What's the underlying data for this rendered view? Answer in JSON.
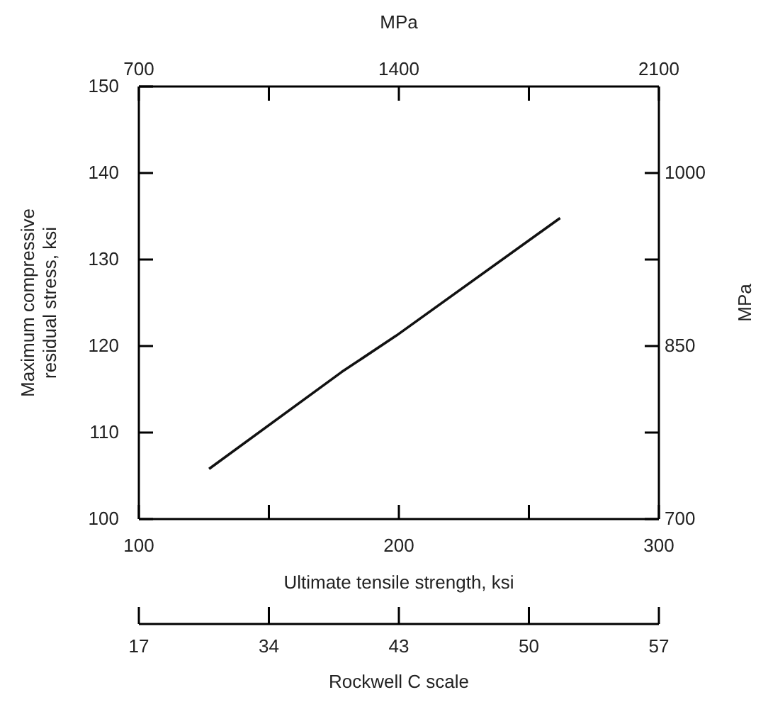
{
  "chart_data": {
    "type": "line",
    "xlabel": "Ultimate tensile strength, ksi",
    "ylabel": "Maximum compressive\nresidual stress, ksi",
    "y2label": "MPa",
    "x2label": "MPa",
    "annotations": [
      "17",
      "34",
      "43",
      "50",
      "57",
      "Rockwell C scale"
    ],
    "series": [
      {
        "color": "#111111",
        "x": [
          127,
          178,
          199,
          262
        ],
        "values": [
          105.8,
          117,
          121.2,
          134.8
        ]
      }
    ],
    "xlim": [
      100,
      300
    ],
    "xticks": [
      100,
      {
        "value": 150,
        "label": null
      },
      200,
      {
        "value": 250,
        "label": null
      },
      300
    ],
    "ylim": [
      100,
      150
    ],
    "yticks": [
      100,
      110,
      120,
      130,
      140,
      150
    ],
    "y2lim": [
      700,
      1075
    ],
    "y2ticks": [
      700,
      {
        "value": 775,
        "label": null
      },
      850,
      {
        "value": 925,
        "label": null
      },
      1000
    ],
    "x2lim": [
      700,
      2100
    ],
    "x2ticks": [
      700,
      {
        "value": 1050,
        "label": null
      },
      1400,
      {
        "value": 1750,
        "label": null
      },
      2100
    ],
    "grid": false,
    "marker": "none",
    "line_style": "solid"
  }
}
